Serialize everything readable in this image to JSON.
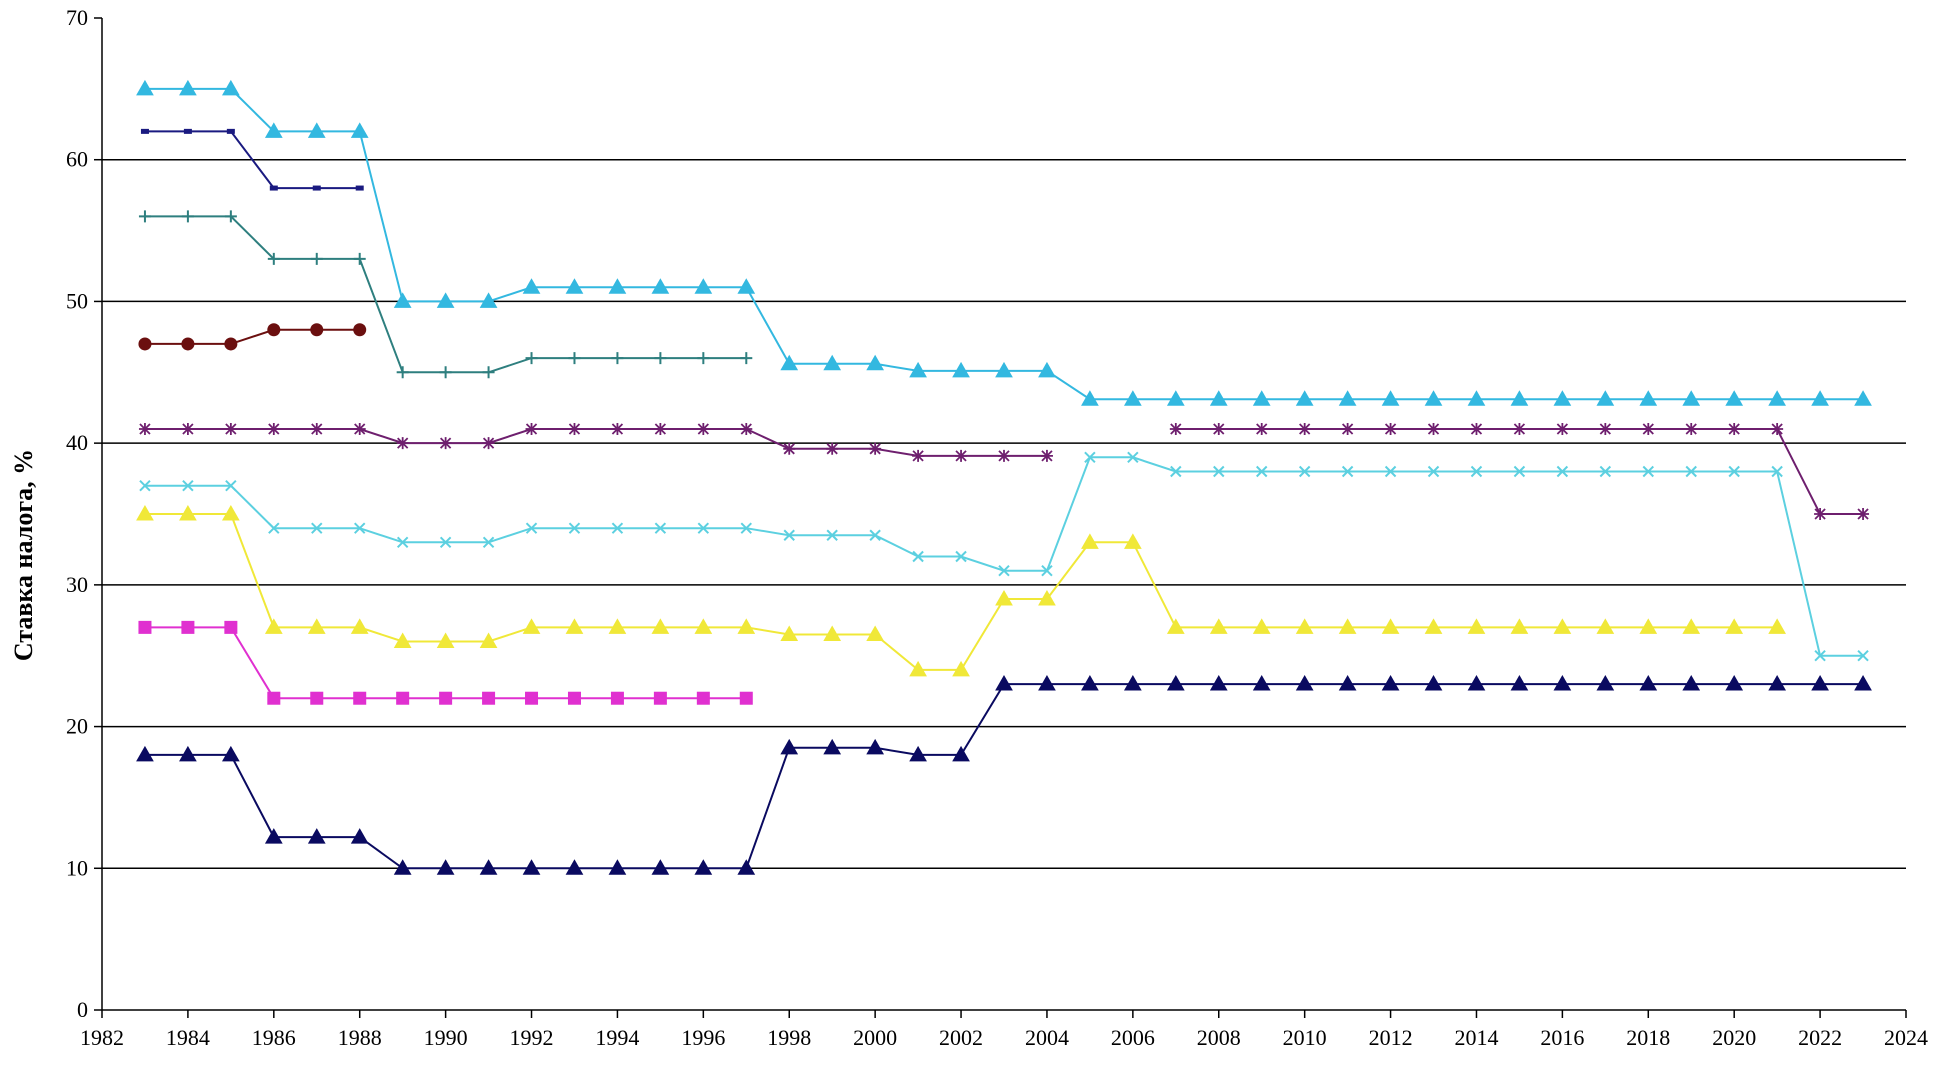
{
  "chart_data": {
    "type": "line",
    "title": "",
    "xlabel": "",
    "ylabel": "Ставка налога, %",
    "xlim": [
      1982,
      2024
    ],
    "ylim": [
      0,
      70
    ],
    "x_ticks": [
      1982,
      1984,
      1986,
      1988,
      1990,
      1992,
      1994,
      1996,
      1998,
      2000,
      2002,
      2004,
      2006,
      2008,
      2010,
      2012,
      2014,
      2016,
      2018,
      2020,
      2022,
      2024
    ],
    "y_ticks": [
      0,
      10,
      20,
      30,
      40,
      50,
      60,
      70
    ],
    "grid": "horizontal",
    "legend": "none",
    "series": [
      {
        "color": "#33B8E0",
        "marker": "triangle",
        "points": [
          [
            1983,
            65
          ],
          [
            1984,
            65
          ],
          [
            1985,
            65
          ],
          [
            1986,
            62
          ],
          [
            1987,
            62
          ],
          [
            1988,
            62
          ],
          [
            1989,
            50
          ],
          [
            1990,
            50
          ],
          [
            1991,
            50
          ],
          [
            1992,
            51
          ],
          [
            1993,
            51
          ],
          [
            1994,
            51
          ],
          [
            1995,
            51
          ],
          [
            1996,
            51
          ],
          [
            1997,
            51
          ],
          [
            1998,
            45.6
          ],
          [
            1999,
            45.6
          ],
          [
            2000,
            45.6
          ],
          [
            2001,
            45.1
          ],
          [
            2002,
            45.1
          ],
          [
            2003,
            45.1
          ],
          [
            2004,
            45.1
          ],
          [
            2005,
            43.1
          ],
          [
            2006,
            43.1
          ],
          [
            2007,
            43.1
          ],
          [
            2008,
            43.1
          ],
          [
            2009,
            43.1
          ],
          [
            2010,
            43.1
          ],
          [
            2011,
            43.1
          ],
          [
            2012,
            43.1
          ],
          [
            2013,
            43.1
          ],
          [
            2014,
            43.1
          ],
          [
            2015,
            43.1
          ],
          [
            2016,
            43.1
          ],
          [
            2017,
            43.1
          ],
          [
            2018,
            43.1
          ],
          [
            2019,
            43.1
          ],
          [
            2020,
            43.1
          ],
          [
            2021,
            43.1
          ],
          [
            2022,
            43.1
          ],
          [
            2023,
            43.1
          ]
        ]
      },
      {
        "color": "#1A1A80",
        "marker": "dash",
        "points": [
          [
            1983,
            62
          ],
          [
            1984,
            62
          ],
          [
            1985,
            62
          ],
          [
            1986,
            58
          ],
          [
            1987,
            58
          ],
          [
            1988,
            58
          ]
        ]
      },
      {
        "color": "#2E7F7F",
        "marker": "plus",
        "points": [
          [
            1983,
            56
          ],
          [
            1984,
            56
          ],
          [
            1985,
            56
          ],
          [
            1986,
            53
          ],
          [
            1987,
            53
          ],
          [
            1988,
            53
          ],
          [
            1989,
            45
          ],
          [
            1990,
            45
          ],
          [
            1991,
            45
          ],
          [
            1992,
            46
          ],
          [
            1993,
            46
          ],
          [
            1994,
            46
          ],
          [
            1995,
            46
          ],
          [
            1996,
            46
          ],
          [
            1997,
            46
          ]
        ]
      },
      {
        "color": "#6B0F0F",
        "marker": "circle",
        "points": [
          [
            1983,
            47
          ],
          [
            1984,
            47
          ],
          [
            1985,
            47
          ],
          [
            1986,
            48
          ],
          [
            1987,
            48
          ],
          [
            1988,
            48
          ]
        ]
      },
      {
        "color": "#6E1F6E",
        "marker": "asterisk",
        "points": [
          [
            1983,
            41
          ],
          [
            1984,
            41
          ],
          [
            1985,
            41
          ],
          [
            1986,
            41
          ],
          [
            1987,
            41
          ],
          [
            1988,
            41
          ],
          [
            1989,
            40
          ],
          [
            1990,
            40
          ],
          [
            1991,
            40
          ],
          [
            1992,
            41
          ],
          [
            1993,
            41
          ],
          [
            1994,
            41
          ],
          [
            1995,
            41
          ],
          [
            1996,
            41
          ],
          [
            1997,
            41
          ],
          [
            1998,
            39.6
          ],
          [
            1999,
            39.6
          ],
          [
            2000,
            39.6
          ],
          [
            2001,
            39.1
          ],
          [
            2002,
            39.1
          ],
          [
            2003,
            39.1
          ],
          [
            2004,
            39.1
          ]
        ]
      },
      {
        "color": "#6E1F6E",
        "marker": "asterisk",
        "points": [
          [
            2007,
            41
          ],
          [
            2008,
            41
          ],
          [
            2009,
            41
          ],
          [
            2010,
            41
          ],
          [
            2011,
            41
          ],
          [
            2012,
            41
          ],
          [
            2013,
            41
          ],
          [
            2014,
            41
          ],
          [
            2015,
            41
          ],
          [
            2016,
            41
          ],
          [
            2017,
            41
          ],
          [
            2018,
            41
          ],
          [
            2019,
            41
          ],
          [
            2020,
            41
          ],
          [
            2021,
            41
          ],
          [
            2022,
            35
          ],
          [
            2023,
            35
          ]
        ]
      },
      {
        "color": "#5CD0E0",
        "marker": "x",
        "points": [
          [
            1983,
            37
          ],
          [
            1984,
            37
          ],
          [
            1985,
            37
          ],
          [
            1986,
            34
          ],
          [
            1987,
            34
          ],
          [
            1988,
            34
          ],
          [
            1989,
            33
          ],
          [
            1990,
            33
          ],
          [
            1991,
            33
          ],
          [
            1992,
            34
          ],
          [
            1993,
            34
          ],
          [
            1994,
            34
          ],
          [
            1995,
            34
          ],
          [
            1996,
            34
          ],
          [
            1997,
            34
          ],
          [
            1998,
            33.5
          ],
          [
            1999,
            33.5
          ],
          [
            2000,
            33.5
          ],
          [
            2001,
            32
          ],
          [
            2002,
            32
          ],
          [
            2003,
            31
          ],
          [
            2004,
            31
          ],
          [
            2005,
            39
          ],
          [
            2006,
            39
          ],
          [
            2007,
            38
          ],
          [
            2008,
            38
          ],
          [
            2009,
            38
          ],
          [
            2010,
            38
          ],
          [
            2011,
            38
          ],
          [
            2012,
            38
          ],
          [
            2013,
            38
          ],
          [
            2014,
            38
          ],
          [
            2015,
            38
          ],
          [
            2016,
            38
          ],
          [
            2017,
            38
          ],
          [
            2018,
            38
          ],
          [
            2019,
            38
          ],
          [
            2020,
            38
          ],
          [
            2021,
            38
          ],
          [
            2022,
            25
          ],
          [
            2023,
            25
          ]
        ]
      },
      {
        "color": "#F0E838",
        "marker": "triangle",
        "points": [
          [
            1983,
            35
          ],
          [
            1984,
            35
          ],
          [
            1985,
            35
          ],
          [
            1986,
            27
          ],
          [
            1987,
            27
          ],
          [
            1988,
            27
          ],
          [
            1989,
            26
          ],
          [
            1990,
            26
          ],
          [
            1991,
            26
          ],
          [
            1992,
            27
          ],
          [
            1993,
            27
          ],
          [
            1994,
            27
          ],
          [
            1995,
            27
          ],
          [
            1996,
            27
          ],
          [
            1997,
            27
          ],
          [
            1998,
            26.5
          ],
          [
            1999,
            26.5
          ],
          [
            2000,
            26.5
          ],
          [
            2001,
            24
          ],
          [
            2002,
            24
          ],
          [
            2003,
            29
          ],
          [
            2004,
            29
          ],
          [
            2005,
            33
          ],
          [
            2006,
            33
          ],
          [
            2007,
            27
          ],
          [
            2008,
            27
          ],
          [
            2009,
            27
          ],
          [
            2010,
            27
          ],
          [
            2011,
            27
          ],
          [
            2012,
            27
          ],
          [
            2013,
            27
          ],
          [
            2014,
            27
          ],
          [
            2015,
            27
          ],
          [
            2016,
            27
          ],
          [
            2017,
            27
          ],
          [
            2018,
            27
          ],
          [
            2019,
            27
          ],
          [
            2020,
            27
          ],
          [
            2021,
            27
          ]
        ]
      },
      {
        "color": "#E030D0",
        "marker": "square",
        "points": [
          [
            1983,
            27
          ],
          [
            1984,
            27
          ],
          [
            1985,
            27
          ],
          [
            1986,
            22
          ],
          [
            1987,
            22
          ],
          [
            1988,
            22
          ],
          [
            1989,
            22
          ],
          [
            1990,
            22
          ],
          [
            1991,
            22
          ],
          [
            1992,
            22
          ],
          [
            1993,
            22
          ],
          [
            1994,
            22
          ],
          [
            1995,
            22
          ],
          [
            1996,
            22
          ],
          [
            1997,
            22
          ]
        ]
      },
      {
        "color": "#0A0A60",
        "marker": "triangle",
        "points": [
          [
            1983,
            18
          ],
          [
            1984,
            18
          ],
          [
            1985,
            18
          ],
          [
            1986,
            12.2
          ],
          [
            1987,
            12.2
          ],
          [
            1988,
            12.2
          ],
          [
            1989,
            10
          ],
          [
            1990,
            10
          ],
          [
            1991,
            10
          ],
          [
            1992,
            10
          ],
          [
            1993,
            10
          ],
          [
            1994,
            10
          ],
          [
            1995,
            10
          ],
          [
            1996,
            10
          ],
          [
            1997,
            10
          ],
          [
            1998,
            18.5
          ],
          [
            1999,
            18.5
          ],
          [
            2000,
            18.5
          ],
          [
            2001,
            18
          ],
          [
            2002,
            18
          ],
          [
            2003,
            23
          ],
          [
            2004,
            23
          ],
          [
            2005,
            23
          ],
          [
            2006,
            23
          ],
          [
            2007,
            23
          ],
          [
            2008,
            23
          ],
          [
            2009,
            23
          ],
          [
            2010,
            23
          ],
          [
            2011,
            23
          ],
          [
            2012,
            23
          ],
          [
            2013,
            23
          ],
          [
            2014,
            23
          ],
          [
            2015,
            23
          ],
          [
            2016,
            23
          ],
          [
            2017,
            23
          ],
          [
            2018,
            23
          ],
          [
            2019,
            23
          ],
          [
            2020,
            23
          ],
          [
            2021,
            23
          ],
          [
            2022,
            23
          ],
          [
            2023,
            23
          ]
        ]
      }
    ]
  }
}
